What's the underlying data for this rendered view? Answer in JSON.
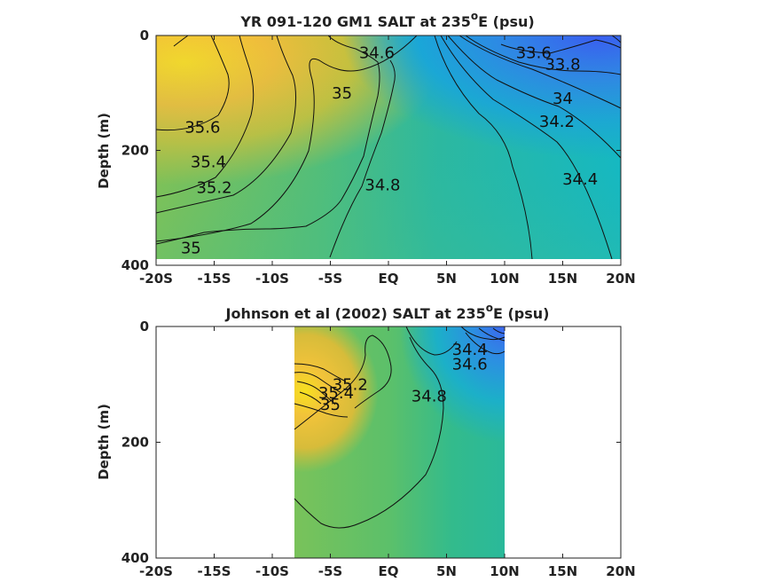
{
  "chart_data": [
    {
      "type": "heatmap",
      "title_main": "YR 091-120 GM1 SALT at 235",
      "title_sup": "o",
      "title_tail": "E (psu)",
      "ylabel": "Depth (m)",
      "xlabel": "",
      "x_ticks": [
        "-20S",
        "-15S",
        "-10S",
        "-5S",
        "EQ",
        "5N",
        "10N",
        "15N",
        "20N"
      ],
      "y_ticks": [
        "0",
        "200",
        "400"
      ],
      "xlim": [
        -20,
        20
      ],
      "ylim": [
        0,
        400
      ],
      "data_extent_x": [
        -20,
        20
      ],
      "data_extent_y": [
        0,
        385
      ],
      "colormap": "parula",
      "contour_levels": [
        {
          "value": "33.6",
          "lon": 12.5,
          "depth": 30
        },
        {
          "value": "33.8",
          "lon": 15.0,
          "depth": 50
        },
        {
          "value": "34",
          "lon": 15.0,
          "depth": 110
        },
        {
          "value": "34.2",
          "lon": 14.5,
          "depth": 150
        },
        {
          "value": "34.4",
          "lon": 16.5,
          "depth": 250
        },
        {
          "value": "34.6",
          "lon": -1.0,
          "depth": 30
        },
        {
          "value": "34.8",
          "lon": -0.5,
          "depth": 260
        },
        {
          "value": "35",
          "lon": -4.0,
          "depth": 100
        },
        {
          "value": "35",
          "lon": -17.0,
          "depth": 370
        },
        {
          "value": "35.2",
          "lon": -15.0,
          "depth": 265
        },
        {
          "value": "35.4",
          "lon": -15.5,
          "depth": 220
        },
        {
          "value": "35.6",
          "lon": -16.0,
          "depth": 160
        }
      ]
    },
    {
      "type": "heatmap",
      "title_main": "Johnson et al (2002) SALT at 235",
      "title_sup": "o",
      "title_tail": "E (psu)",
      "ylabel": "Depth (m)",
      "xlabel": "",
      "x_ticks": [
        "-20S",
        "-15S",
        "-10S",
        "-5S",
        "EQ",
        "5N",
        "10N",
        "15N",
        "20N"
      ],
      "y_ticks": [
        "0",
        "200",
        "400"
      ],
      "xlim": [
        -20,
        20
      ],
      "ylim": [
        0,
        400
      ],
      "data_extent_x": [
        -8,
        10
      ],
      "data_extent_y": [
        0,
        400
      ],
      "colormap": "parula",
      "contour_levels": [
        {
          "value": "34.4",
          "lon": 7.0,
          "depth": 40
        },
        {
          "value": "34.6",
          "lon": 7.0,
          "depth": 65
        },
        {
          "value": "34.8",
          "lon": 3.5,
          "depth": 120
        },
        {
          "value": "35.2",
          "lon": -3.3,
          "depth": 100
        },
        {
          "value": "35.4",
          "lon": -4.5,
          "depth": 115
        },
        {
          "value": "35",
          "lon": -5.0,
          "depth": 135
        }
      ]
    }
  ]
}
